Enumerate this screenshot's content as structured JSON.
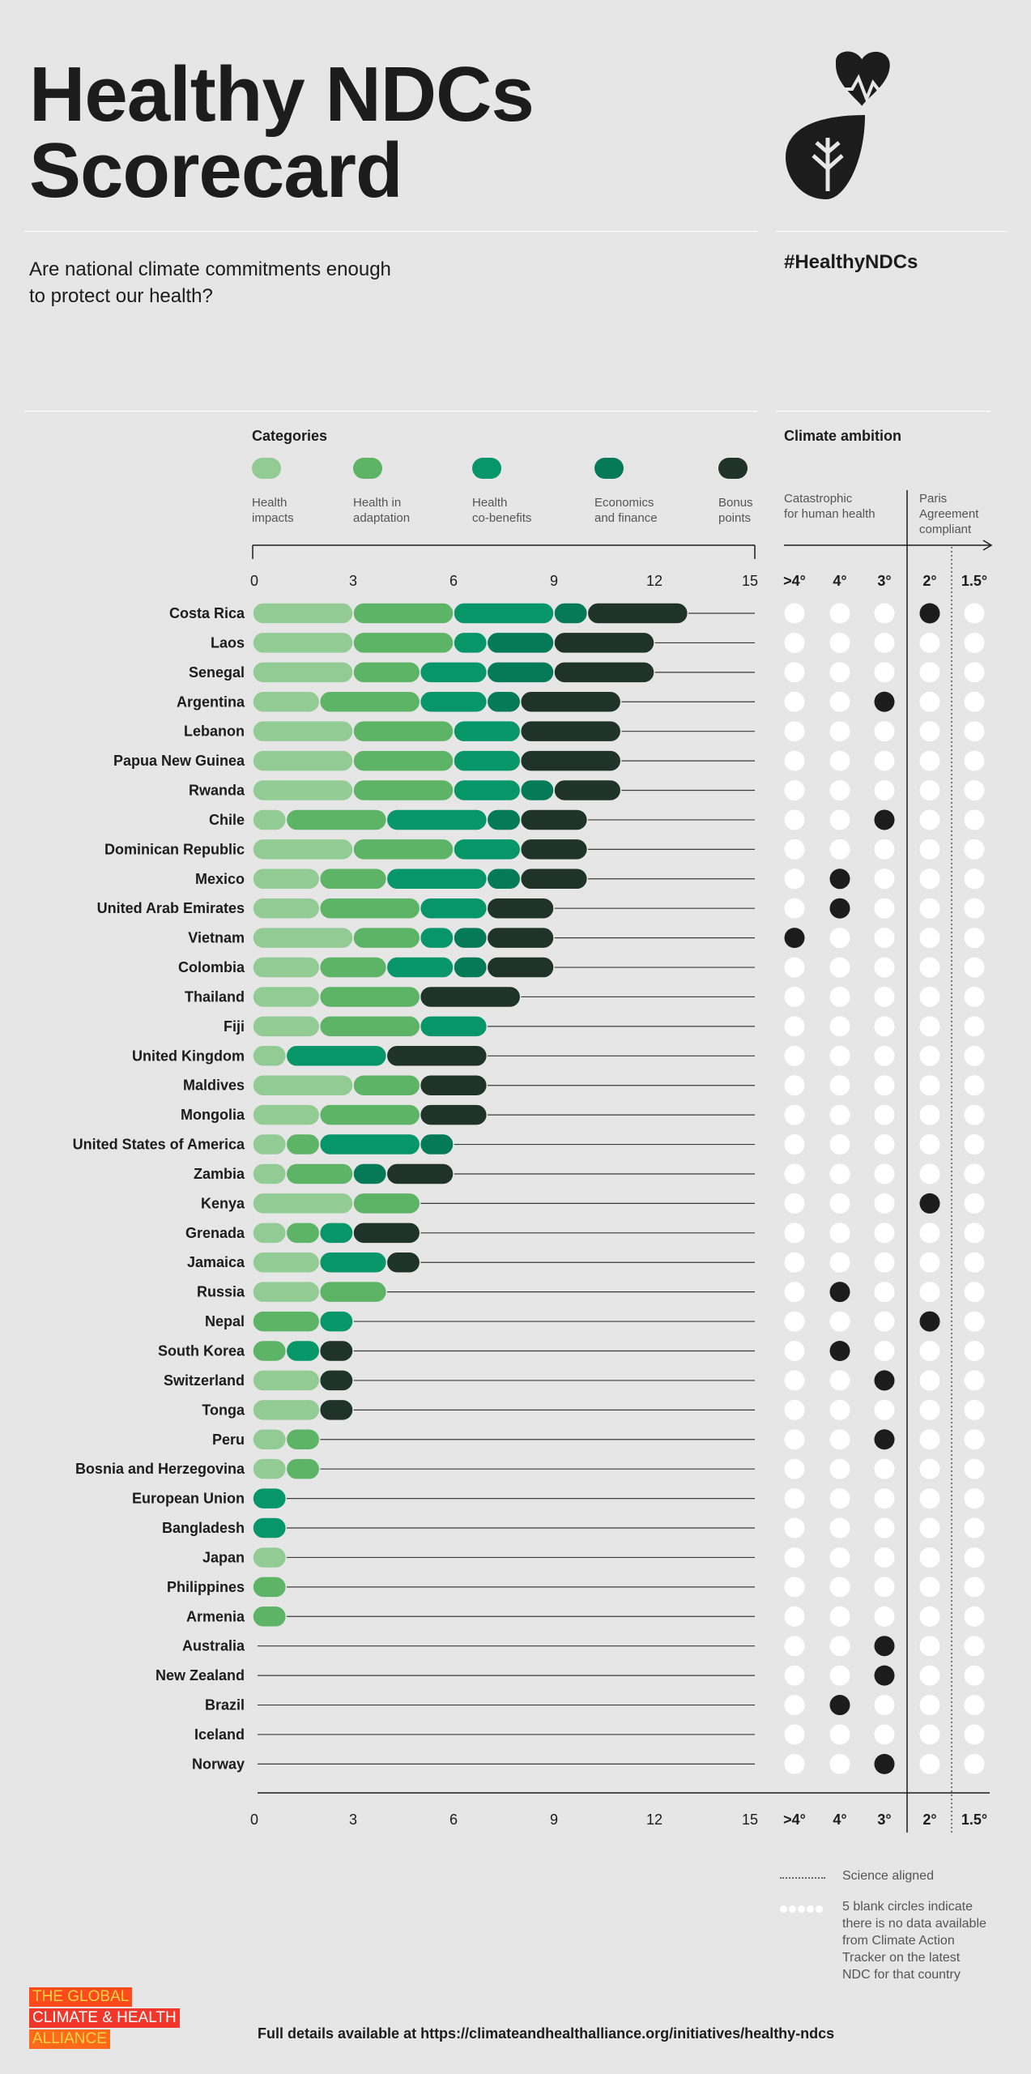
{
  "header": {
    "title": "Healthy NDCs\nScorecard",
    "subtitle": "Are national climate commitments enough to protect our health?",
    "hashtag": "#HealthyNDCs"
  },
  "legend": {
    "heading": "Categories",
    "items": [
      {
        "label": "Health\nimpacts",
        "color": "#93cb94"
      },
      {
        "label": "Health in\nadaptation",
        "color": "#5db466"
      },
      {
        "label": "Health\nco-benefits",
        "color": "#069668"
      },
      {
        "label": "Economics\nand finance",
        "color": "#057a56"
      },
      {
        "label": "Bonus\npoints",
        "color": "#1f3329"
      }
    ]
  },
  "ambition": {
    "heading": "Climate ambition",
    "left_label": "Catastrophic\nfor human health",
    "right_label": "Paris\nAgreement\ncompliant",
    "columns": [
      ">4°",
      "4°",
      "3°",
      "2°",
      "1.5°"
    ]
  },
  "chart_data": {
    "type": "bar",
    "stacked": true,
    "orientation": "horizontal",
    "xlim": [
      0,
      15
    ],
    "xticks": [
      "0",
      "3",
      "6",
      "9",
      "12",
      "15"
    ],
    "categories": [
      "Costa Rica",
      "Laos",
      "Senegal",
      "Argentina",
      "Lebanon",
      "Papua New Guinea",
      "Rwanda",
      "Chile",
      "Dominican Republic",
      "Mexico",
      "United Arab Emirates",
      "Vietnam",
      "Colombia",
      "Thailand",
      "Fiji",
      "United Kingdom",
      "Maldives",
      "Mongolia",
      "United States of America",
      "Zambia",
      "Kenya",
      "Grenada",
      "Jamaica",
      "Russia",
      "Nepal",
      "South Korea",
      "Switzerland",
      "Tonga",
      "Peru",
      "Bosnia and Herzegovina",
      "European Union",
      "Bangladesh",
      "Japan",
      "Philippines",
      "Armenia",
      "Australia",
      "New Zealand",
      "Brazil",
      "Iceland",
      "Norway"
    ],
    "series": [
      {
        "name": "Health impacts",
        "color": "#93cb94",
        "values": [
          3,
          3,
          3,
          2,
          3,
          3,
          3,
          1,
          3,
          2,
          2,
          3,
          2,
          2,
          2,
          1,
          3,
          2,
          1,
          1,
          3,
          1,
          2,
          2,
          0,
          0,
          2,
          2,
          1,
          1,
          0,
          0,
          1,
          0,
          0,
          0,
          0,
          0,
          0,
          0
        ]
      },
      {
        "name": "Health in adaptation",
        "color": "#5db466",
        "values": [
          3,
          3,
          2,
          3,
          3,
          3,
          3,
          3,
          3,
          2,
          3,
          2,
          2,
          3,
          3,
          0,
          2,
          3,
          1,
          2,
          2,
          1,
          0,
          2,
          2,
          1,
          0,
          0,
          1,
          1,
          0,
          0,
          0,
          1,
          1,
          0,
          0,
          0,
          0,
          0
        ]
      },
      {
        "name": "Health co-benefits",
        "color": "#069668",
        "values": [
          3,
          1,
          2,
          2,
          2,
          2,
          2,
          3,
          2,
          3,
          2,
          1,
          2,
          0,
          2,
          3,
          0,
          0,
          3,
          0,
          0,
          1,
          2,
          0,
          1,
          1,
          0,
          0,
          0,
          0,
          1,
          1,
          0,
          0,
          0,
          0,
          0,
          0,
          0,
          0
        ]
      },
      {
        "name": "Economics and finance",
        "color": "#057a56",
        "values": [
          1,
          2,
          2,
          1,
          0,
          0,
          1,
          1,
          0,
          1,
          0,
          1,
          1,
          0,
          0,
          0,
          0,
          0,
          1,
          1,
          0,
          0,
          0,
          0,
          0,
          0,
          0,
          0,
          0,
          0,
          0,
          0,
          0,
          0,
          0,
          0,
          0,
          0,
          0,
          0
        ]
      },
      {
        "name": "Bonus points",
        "color": "#1f3329",
        "values": [
          3,
          3,
          3,
          3,
          3,
          3,
          2,
          2,
          2,
          2,
          2,
          2,
          2,
          3,
          0,
          3,
          2,
          2,
          0,
          2,
          0,
          2,
          1,
          0,
          0,
          1,
          1,
          1,
          0,
          0,
          0,
          0,
          0,
          0,
          0,
          0,
          0,
          0,
          0,
          0
        ]
      }
    ],
    "ambition_columns": [
      ">4°",
      "4°",
      "3°",
      "2°",
      "1.5°"
    ],
    "ambition_rating": [
      "2°",
      "",
      "",
      "3°",
      "",
      "",
      "",
      "3°",
      "",
      "4°",
      "4°",
      ">4°",
      "",
      "",
      "",
      "",
      "",
      "",
      "",
      "",
      "2°",
      "",
      "",
      "4°",
      "2°",
      "4°",
      "3°",
      "",
      "3°",
      "",
      "",
      "",
      "",
      "",
      "",
      "3°",
      "3°",
      "4°",
      "",
      "3°"
    ]
  },
  "notes": {
    "science_aligned": "Science aligned",
    "blank_circles": "5 blank circles indicate\nthere is no data available\nfrom Climate Action\nTracker on the latest\nNDC for that country"
  },
  "footer": {
    "details": "Full details available at https://climateandhealthalliance.org/initiatives/healthy-ndcs",
    "org_lines": [
      "THE GLOBAL",
      "CLIMATE & HEALTH",
      "ALLIANCE"
    ]
  }
}
